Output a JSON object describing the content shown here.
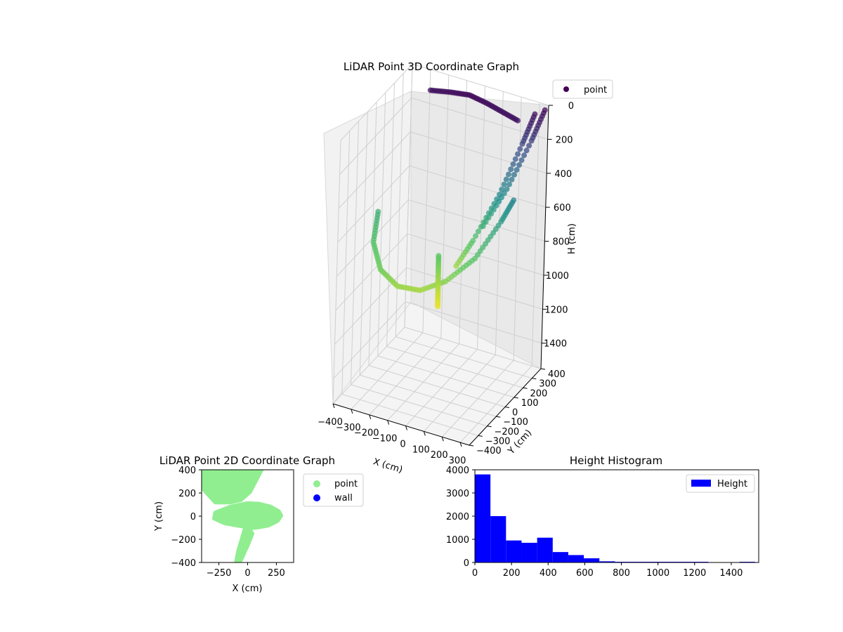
{
  "colors": {
    "point_colormap": [
      "#440154",
      "#3b528b",
      "#21918c",
      "#5ec962",
      "#fde725"
    ],
    "scatter2d_point": "#90ee90",
    "scatter2d_wall": "#0000ff",
    "histogram_bar": "#0000ff"
  },
  "chart_data": [
    {
      "type": "scatter",
      "title": "LiDAR Point 3D Coordinate Graph",
      "xlabel": "X (cm)",
      "ylabel": "Y (cm)",
      "zlabel": "H (cm)",
      "xlim": [
        -400,
        350
      ],
      "ylim": [
        -400,
        400
      ],
      "zlim": [
        1550,
        0
      ],
      "x_ticks": [
        "-400",
        "-300",
        "-200",
        "-100",
        "0",
        "100",
        "200",
        "300"
      ],
      "y_ticks": [
        "-400",
        "-300",
        "-200",
        "-100",
        "0",
        "100",
        "200",
        "300",
        "400"
      ],
      "z_ticks": [
        "0",
        "200",
        "400",
        "600",
        "800",
        "1000",
        "1200",
        "1400"
      ],
      "legend": {
        "entries": [
          "point"
        ],
        "placement": "top-right"
      },
      "grid": true,
      "colormap": "viridis",
      "series": [
        {
          "name": "point",
          "segments": [
            {
              "x": [
                -350,
                -300,
                -200,
                -100,
                0,
                100,
                200,
                270,
                300
              ],
              "y": [
                -50,
                -200,
                -320,
                -330,
                -280,
                -200,
                -80,
                60,
                150
              ],
              "h": [
                600,
                680,
                740,
                800,
                820,
                780,
                680,
                520,
                420
              ]
            },
            {
              "x": [
                300,
                260,
                200,
                120,
                60
              ],
              "y": [
                350,
                300,
                180,
                60,
                -20
              ],
              "h": [
                40,
                200,
                450,
                680,
                820
              ]
            },
            {
              "x": [
                340,
                300,
                230,
                150
              ],
              "y": [
                380,
                320,
                200,
                80
              ],
              "h": [
                20,
                180,
                420,
                620
              ]
            },
            {
              "x": [
                -250,
                -150,
                -50,
                50,
                150,
                250
              ],
              "y": [
                300,
                320,
                330,
                320,
                300,
                280
              ],
              "h": [
                50,
                40,
                30,
                40,
                50,
                60
              ]
            },
            {
              "x": [
                20,
                40,
                60,
                80
              ],
              "y": [
                -120,
                -160,
                -200,
                -240
              ],
              "h": [
                700,
                780,
                860,
                920
              ]
            }
          ]
        }
      ]
    },
    {
      "type": "scatter",
      "title": "LiDAR Point 2D Coordinate Graph",
      "xlabel": "X (cm)",
      "ylabel": "Y (cm)",
      "xlim": [
        -400,
        400
      ],
      "ylim": [
        -400,
        400
      ],
      "x_ticks": [
        "−250",
        "0",
        "250"
      ],
      "y_ticks": [
        "400",
        "200",
        "0",
        "−200",
        "−400"
      ],
      "legend": {
        "entries": [
          "point",
          "wall"
        ],
        "placement": "outside-right"
      },
      "series": [
        {
          "name": "point",
          "regions": [
            {
              "x": [
                -400,
                120,
                20,
                -60,
                -150,
                -280,
                -400
              ],
              "y": [
                400,
                400,
                210,
                140,
                120,
                120,
                250
              ]
            },
            {
              "x": [
                -280,
                -150,
                0,
                100,
                200,
                270,
                290,
                260,
                180,
                60,
                -60,
                -200,
                -290
              ],
              "y": [
                30,
                80,
                110,
                105,
                80,
                40,
                5,
                -40,
                -80,
                -100,
                -85,
                -60,
                -20
              ]
            },
            {
              "x": [
                -20,
                20,
                40,
                0,
                -60,
                -100,
                -80
              ],
              "y": [
                -100,
                -120,
                -150,
                -250,
                -380,
                -400,
                -300
              ]
            }
          ]
        },
        {
          "name": "wall",
          "x": [],
          "y": []
        }
      ]
    },
    {
      "type": "bar",
      "title": "Height Histogram",
      "xlabel": "",
      "ylabel": "",
      "xlim": [
        0,
        1550
      ],
      "ylim": [
        0,
        4000
      ],
      "x_ticks": [
        "0",
        "200",
        "400",
        "600",
        "800",
        "1000",
        "1200",
        "1400"
      ],
      "y_ticks": [
        "0",
        "1000",
        "2000",
        "3000",
        "4000"
      ],
      "legend": {
        "entries": [
          "Height"
        ],
        "placement": "top-right"
      },
      "series": [
        {
          "name": "Height",
          "bin_edges": [
            0,
            85,
            170,
            255,
            340,
            425,
            510,
            595,
            680,
            765,
            850,
            935,
            1020,
            1105,
            1190,
            1275,
            1360,
            1445,
            1530
          ],
          "values": [
            3800,
            2000,
            950,
            850,
            1070,
            450,
            320,
            180,
            50,
            10,
            5,
            3,
            2,
            1,
            1,
            0,
            0,
            1
          ]
        }
      ]
    }
  ]
}
